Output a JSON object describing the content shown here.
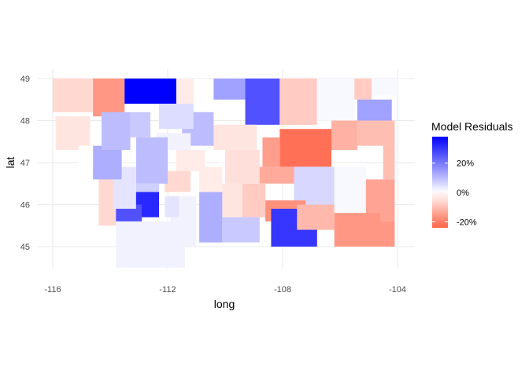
{
  "chart_data": {
    "type": "map",
    "xlabel": "long",
    "ylabel": "lat",
    "x_ticks": [
      "-116",
      "-112",
      "-108",
      "-104"
    ],
    "y_ticks": [
      "45",
      "46",
      "47",
      "48",
      "49"
    ],
    "xlim": [
      -116,
      -103.5
    ],
    "ylim": [
      44.4,
      49.1
    ],
    "legend": {
      "title": "Model Residuals",
      "labels": [
        "20%",
        "0%",
        "-20%"
      ],
      "values": [
        20,
        0,
        -20
      ],
      "range": [
        -24,
        38
      ],
      "low_color": "#ff6347",
      "mid_color": "#ffffff",
      "high_color": "#0000ff",
      "placement": "right"
    },
    "regions": [
      {
        "lon": [
          -116,
          -114.6
        ],
        "lat": [
          48.2,
          49
        ],
        "value": -6
      },
      {
        "lon": [
          -114.6,
          -113.5
        ],
        "lat": [
          48.1,
          49
        ],
        "value": -16
      },
      {
        "lon": [
          -113.5,
          -111.7
        ],
        "lat": [
          48.4,
          49
        ],
        "value": 38
      },
      {
        "lon": [
          -111.7,
          -111.1
        ],
        "lat": [
          48.4,
          49
        ],
        "value": -3
      },
      {
        "lon": [
          -110.4,
          -109.3
        ],
        "lat": [
          48.5,
          49
        ],
        "value": 14
      },
      {
        "lon": [
          -109.3,
          -108.1
        ],
        "lat": [
          47.9,
          49
        ],
        "value": 26
      },
      {
        "lon": [
          -108.1,
          -106.8
        ],
        "lat": [
          47.9,
          49
        ],
        "value": -8
      },
      {
        "lon": [
          -106.8,
          -105.5
        ],
        "lat": [
          48,
          49
        ],
        "value": 1
      },
      {
        "lon": [
          -105.5,
          -104.9
        ],
        "lat": [
          48.5,
          49
        ],
        "value": -8
      },
      {
        "lon": [
          -104.9,
          -104
        ],
        "lat": [
          48.6,
          49
        ],
        "value": 1
      },
      {
        "lon": [
          -105.4,
          -104.2
        ],
        "lat": [
          48,
          48.5
        ],
        "value": 14
      },
      {
        "lon": [
          -105.4,
          -104.1
        ],
        "lat": [
          47.4,
          48
        ],
        "value": -10
      },
      {
        "lon": [
          -106.3,
          -105.4
        ],
        "lat": [
          47.3,
          48
        ],
        "value": -12
      },
      {
        "lon": [
          -108.1,
          -106.3
        ],
        "lat": [
          46.9,
          47.8
        ],
        "value": -22
      },
      {
        "lon": [
          -108.7,
          -108.1
        ],
        "lat": [
          46.9,
          47.6
        ],
        "value": -15
      },
      {
        "lon": [
          -108.9,
          -107.5
        ],
        "lat": [
          46.5,
          46.9
        ],
        "value": -13
      },
      {
        "lon": [
          -107.6,
          -106.2
        ],
        "lat": [
          46.0,
          46.9
        ],
        "value": 6
      },
      {
        "lon": [
          -106.2,
          -105.1
        ],
        "lat": [
          45.7,
          46.9
        ],
        "value": 1
      },
      {
        "lon": [
          -105.1,
          -104.1
        ],
        "lat": [
          45.6,
          46.6
        ],
        "value": -14
      },
      {
        "lon": [
          -104.5,
          -104.1
        ],
        "lat": [
          46.6,
          47.4
        ],
        "value": -10
      },
      {
        "lon": [
          -106.2,
          -104.6
        ],
        "lat": [
          45,
          45.8
        ],
        "value": -16
      },
      {
        "lon": [
          -104.8,
          -104.1
        ],
        "lat": [
          45,
          45.6
        ],
        "value": -16
      },
      {
        "lon": [
          -108.6,
          -107.2
        ],
        "lat": [
          45.6,
          46.1
        ],
        "value": -17
      },
      {
        "lon": [
          -108.4,
          -106.8
        ],
        "lat": [
          45,
          45.9
        ],
        "value": 30
      },
      {
        "lon": [
          -107.5,
          -106.2
        ],
        "lat": [
          45.4,
          46.0
        ],
        "value": -11
      },
      {
        "lon": [
          -110.1,
          -108.8
        ],
        "lat": [
          45.1,
          45.7
        ],
        "value": 8
      },
      {
        "lon": [
          -109.4,
          -108.6
        ],
        "lat": [
          45.7,
          46.5
        ],
        "value": -8
      },
      {
        "lon": [
          -110.1,
          -109.4
        ],
        "lat": [
          45.7,
          46.5
        ],
        "value": -4
      },
      {
        "lon": [
          -110.9,
          -110.1
        ],
        "lat": [
          45.1,
          46.3
        ],
        "value": 12
      },
      {
        "lon": [
          -111.9,
          -111.0
        ],
        "lat": [
          45.0,
          46.2
        ],
        "value": 2
      },
      {
        "lon": [
          -112.1,
          -111.2
        ],
        "lat": [
          46.3,
          46.8
        ],
        "value": -6
      },
      {
        "lon": [
          -110.9,
          -110.1
        ],
        "lat": [
          46.3,
          46.9
        ],
        "value": -3
      },
      {
        "lon": [
          -110.0,
          -108.8
        ],
        "lat": [
          46.5,
          47.3
        ],
        "value": -5
      },
      {
        "lon": [
          -111.7,
          -110.7
        ],
        "lat": [
          46.8,
          47.3
        ],
        "value": -3
      },
      {
        "lon": [
          -110.4,
          -108.9
        ],
        "lat": [
          47.3,
          47.9
        ],
        "value": -4
      },
      {
        "lon": [
          -111.5,
          -110.4
        ],
        "lat": [
          47.4,
          48.2
        ],
        "value": 10
      },
      {
        "lon": [
          -112.3,
          -111.1
        ],
        "lat": [
          47.8,
          48.4
        ],
        "value": 5
      },
      {
        "lon": [
          -112.4,
          -111.2
        ],
        "lat": [
          47.3,
          47.7
        ],
        "value": 2
      },
      {
        "lon": [
          -113.3,
          -112.6
        ],
        "lat": [
          47.6,
          48.2
        ],
        "value": 8
      },
      {
        "lon": [
          -113.1,
          -112.0
        ],
        "lat": [
          46.5,
          47.6
        ],
        "value": 10
      },
      {
        "lon": [
          -113.1,
          -112.3
        ],
        "lat": [
          46.0,
          46.5
        ],
        "value": 7
      },
      {
        "lon": [
          -113.2,
          -112.3
        ],
        "lat": [
          45.7,
          46.3
        ],
        "value": 32
      },
      {
        "lon": [
          -113.9,
          -112.9
        ],
        "lat": [
          45.6,
          46.0
        ],
        "value": 26
      },
      {
        "lon": [
          -113.8,
          -111.4
        ],
        "lat": [
          44.5,
          45.6
        ],
        "value": 2
      },
      {
        "lon": [
          -112.1,
          -111.6
        ],
        "lat": [
          45.7,
          46.2
        ],
        "value": 4
      },
      {
        "lon": [
          -114.4,
          -113.8
        ],
        "lat": [
          45.5,
          46.7
        ],
        "value": -6
      },
      {
        "lon": [
          -113.9,
          -113.1
        ],
        "lat": [
          45.9,
          46.9
        ],
        "value": 4
      },
      {
        "lon": [
          -114.6,
          -113.6
        ],
        "lat": [
          46.6,
          47.4
        ],
        "value": 12
      },
      {
        "lon": [
          -114.3,
          -113.3
        ],
        "lat": [
          47.3,
          48.2
        ],
        "value": 10
      },
      {
        "lon": [
          -115.9,
          -114.7
        ],
        "lat": [
          47.3,
          48.1
        ],
        "value": -4
      },
      {
        "lon": [
          -115.1,
          -114.6
        ],
        "lat": [
          46.8,
          47.4
        ],
        "value": 0
      }
    ]
  }
}
